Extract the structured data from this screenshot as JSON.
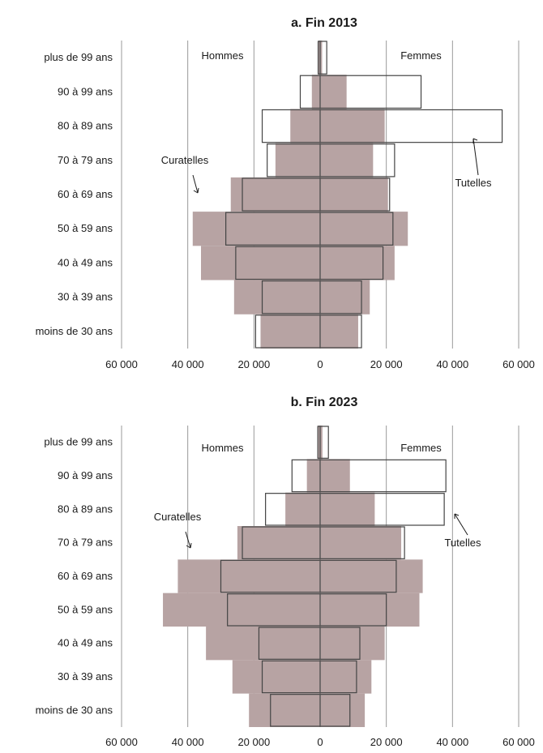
{
  "chart_data": [
    {
      "type": "bar",
      "subtype": "population-pyramid",
      "title": "a. Fin 2013",
      "categories": [
        "moins de 30 ans",
        "30 à 39 ans",
        "40 à 49 ans",
        "50 à 59 ans",
        "60 à 69 ans",
        "70 à 79 ans",
        "80 à 89 ans",
        "90 à 99 ans",
        "plus de 99 ans"
      ],
      "side_labels": {
        "left": "Hommes",
        "right": "Femmes"
      },
      "annotations": {
        "curatelles": "Curatelles",
        "tutelles": "Tutelles"
      },
      "xlim": [
        -60000,
        60000
      ],
      "x_ticks": [
        -60000,
        -40000,
        -20000,
        0,
        20000,
        40000,
        60000
      ],
      "x_tick_labels": [
        "60 000",
        "40 000",
        "20 000",
        "0",
        "20 000",
        "40 000",
        "60 000"
      ],
      "grid": true,
      "series": [
        {
          "name": "Curatelles",
          "side": "Hommes",
          "values": [
            18000,
            26000,
            36000,
            38500,
            27000,
            13500,
            9000,
            2500,
            500
          ]
        },
        {
          "name": "Curatelles",
          "side": "Femmes",
          "values": [
            11500,
            15000,
            22500,
            26500,
            20500,
            16000,
            19500,
            8000,
            600
          ]
        },
        {
          "name": "Tutelles",
          "side": "Hommes",
          "values": [
            19500,
            17500,
            25500,
            28500,
            23500,
            16000,
            17500,
            6000,
            600
          ]
        },
        {
          "name": "Tutelles",
          "side": "Femmes",
          "values": [
            12500,
            12500,
            19000,
            22000,
            21000,
            22500,
            55000,
            30500,
            2000
          ]
        }
      ]
    },
    {
      "type": "bar",
      "subtype": "population-pyramid",
      "title": "b. Fin 2023",
      "categories": [
        "moins de 30 ans",
        "30 à 39 ans",
        "40 à 49 ans",
        "50 à 59 ans",
        "60 à 69 ans",
        "70 à 79 ans",
        "80 à 89 ans",
        "90 à 99 ans",
        "plus de 99 ans"
      ],
      "side_labels": {
        "left": "Hommes",
        "right": "Femmes"
      },
      "annotations": {
        "curatelles": "Curatelles",
        "tutelles": "Tutelles"
      },
      "xlim": [
        -60000,
        60000
      ],
      "x_ticks": [
        -60000,
        -40000,
        -20000,
        0,
        20000,
        40000,
        60000
      ],
      "x_tick_labels": [
        "60 000",
        "40 000",
        "20 000",
        "0",
        "20 000",
        "40 000",
        "60 000"
      ],
      "grid": true,
      "series": [
        {
          "name": "Curatelles",
          "side": "Hommes",
          "values": [
            21500,
            26500,
            34500,
            47500,
            43000,
            25000,
            10500,
            4000,
            700
          ]
        },
        {
          "name": "Curatelles",
          "side": "Femmes",
          "values": [
            13500,
            15500,
            19500,
            30000,
            31000,
            24500,
            16500,
            9000,
            700
          ]
        },
        {
          "name": "Tutelles",
          "side": "Hommes",
          "values": [
            15000,
            17500,
            18500,
            28000,
            30000,
            23500,
            16500,
            8500,
            700
          ]
        },
        {
          "name": "Tutelles",
          "side": "Femmes",
          "values": [
            9000,
            11000,
            12000,
            20000,
            23000,
            25500,
            37500,
            38000,
            2500
          ]
        }
      ]
    }
  ]
}
